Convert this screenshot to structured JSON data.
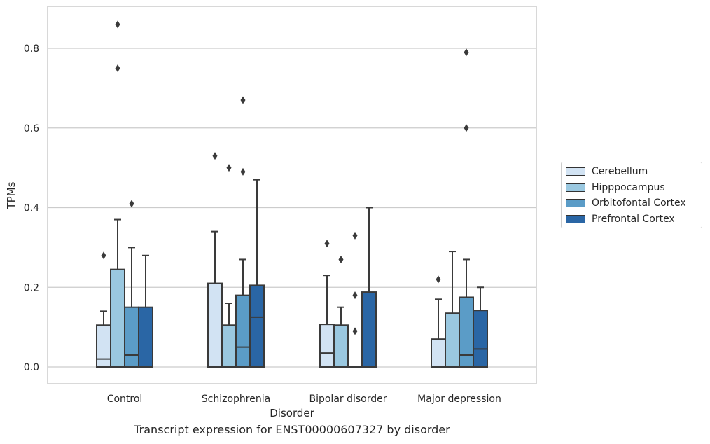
{
  "chart_data": {
    "type": "box",
    "title": "",
    "xlabel": "Disorder",
    "ylabel": "TPMs",
    "categories": [
      "Control",
      "Schizophrenia",
      "Bipolar disorder",
      "Major depression"
    ],
    "ylim": [
      -0.04,
      0.905
    ],
    "yticks": [
      "0.0",
      "0.2",
      "0.4",
      "0.6",
      "0.8"
    ],
    "ytick_values": [
      0.0,
      0.2,
      0.4,
      0.6,
      0.8
    ],
    "grid": true,
    "legend_position": "right",
    "series": [
      {
        "name": "Cerebellum",
        "color": "#d2e3f3",
        "boxes": [
          {
            "q1": 0.0,
            "median": 0.02,
            "q3": 0.105,
            "whisker_low": 0.0,
            "whisker_high": 0.14,
            "outliers": [
              0.28
            ]
          },
          {
            "q1": 0.0,
            "median": 0.0,
            "q3": 0.21,
            "whisker_low": 0.0,
            "whisker_high": 0.34,
            "outliers": [
              0.53
            ]
          },
          {
            "q1": 0.0,
            "median": 0.035,
            "q3": 0.107,
            "whisker_low": 0.0,
            "whisker_high": 0.23,
            "outliers": [
              0.31
            ]
          },
          {
            "q1": 0.0,
            "median": 0.0,
            "q3": 0.07,
            "whisker_low": 0.0,
            "whisker_high": 0.17,
            "outliers": [
              0.22
            ]
          }
        ]
      },
      {
        "name": "Hipppocampus",
        "color": "#9ac8e0",
        "boxes": [
          {
            "q1": 0.0,
            "median": 0.0,
            "q3": 0.245,
            "whisker_low": 0.0,
            "whisker_high": 0.37,
            "outliers": [
              0.75,
              0.86
            ]
          },
          {
            "q1": 0.0,
            "median": 0.0,
            "q3": 0.105,
            "whisker_low": 0.0,
            "whisker_high": 0.16,
            "outliers": [
              0.5
            ]
          },
          {
            "q1": 0.0,
            "median": 0.0,
            "q3": 0.105,
            "whisker_low": 0.0,
            "whisker_high": 0.15,
            "outliers": [
              0.27
            ]
          },
          {
            "q1": 0.0,
            "median": 0.0,
            "q3": 0.135,
            "whisker_low": 0.0,
            "whisker_high": 0.29,
            "outliers": []
          }
        ]
      },
      {
        "name": "Orbitofontal Cortex",
        "color": "#5b9cc7",
        "boxes": [
          {
            "q1": 0.0,
            "median": 0.03,
            "q3": 0.15,
            "whisker_low": 0.0,
            "whisker_high": 0.3,
            "outliers": [
              0.41
            ]
          },
          {
            "q1": 0.0,
            "median": 0.05,
            "q3": 0.18,
            "whisker_low": 0.0,
            "whisker_high": 0.27,
            "outliers": [
              0.49,
              0.67
            ]
          },
          {
            "q1": 0.0,
            "median": 0.0,
            "q3": 0.0,
            "whisker_low": 0.0,
            "whisker_high": 0.0,
            "outliers": [
              0.09,
              0.18,
              0.33
            ]
          },
          {
            "q1": 0.0,
            "median": 0.03,
            "q3": 0.175,
            "whisker_low": 0.0,
            "whisker_high": 0.27,
            "outliers": [
              0.6,
              0.79
            ]
          }
        ]
      },
      {
        "name": "Prefrontal Cortex",
        "color": "#2a66a5",
        "boxes": [
          {
            "q1": 0.0,
            "median": 0.0,
            "q3": 0.15,
            "whisker_low": 0.0,
            "whisker_high": 0.28,
            "outliers": []
          },
          {
            "q1": 0.0,
            "median": 0.125,
            "q3": 0.205,
            "whisker_low": 0.0,
            "whisker_high": 0.47,
            "outliers": []
          },
          {
            "q1": 0.0,
            "median": 0.0,
            "q3": 0.188,
            "whisker_low": 0.0,
            "whisker_high": 0.4,
            "outliers": []
          },
          {
            "q1": 0.0,
            "median": 0.045,
            "q3": 0.142,
            "whisker_low": 0.0,
            "whisker_high": 0.2,
            "outliers": []
          }
        ]
      }
    ]
  },
  "caption": "Transcript expression for ENST00000607327 by disorder"
}
